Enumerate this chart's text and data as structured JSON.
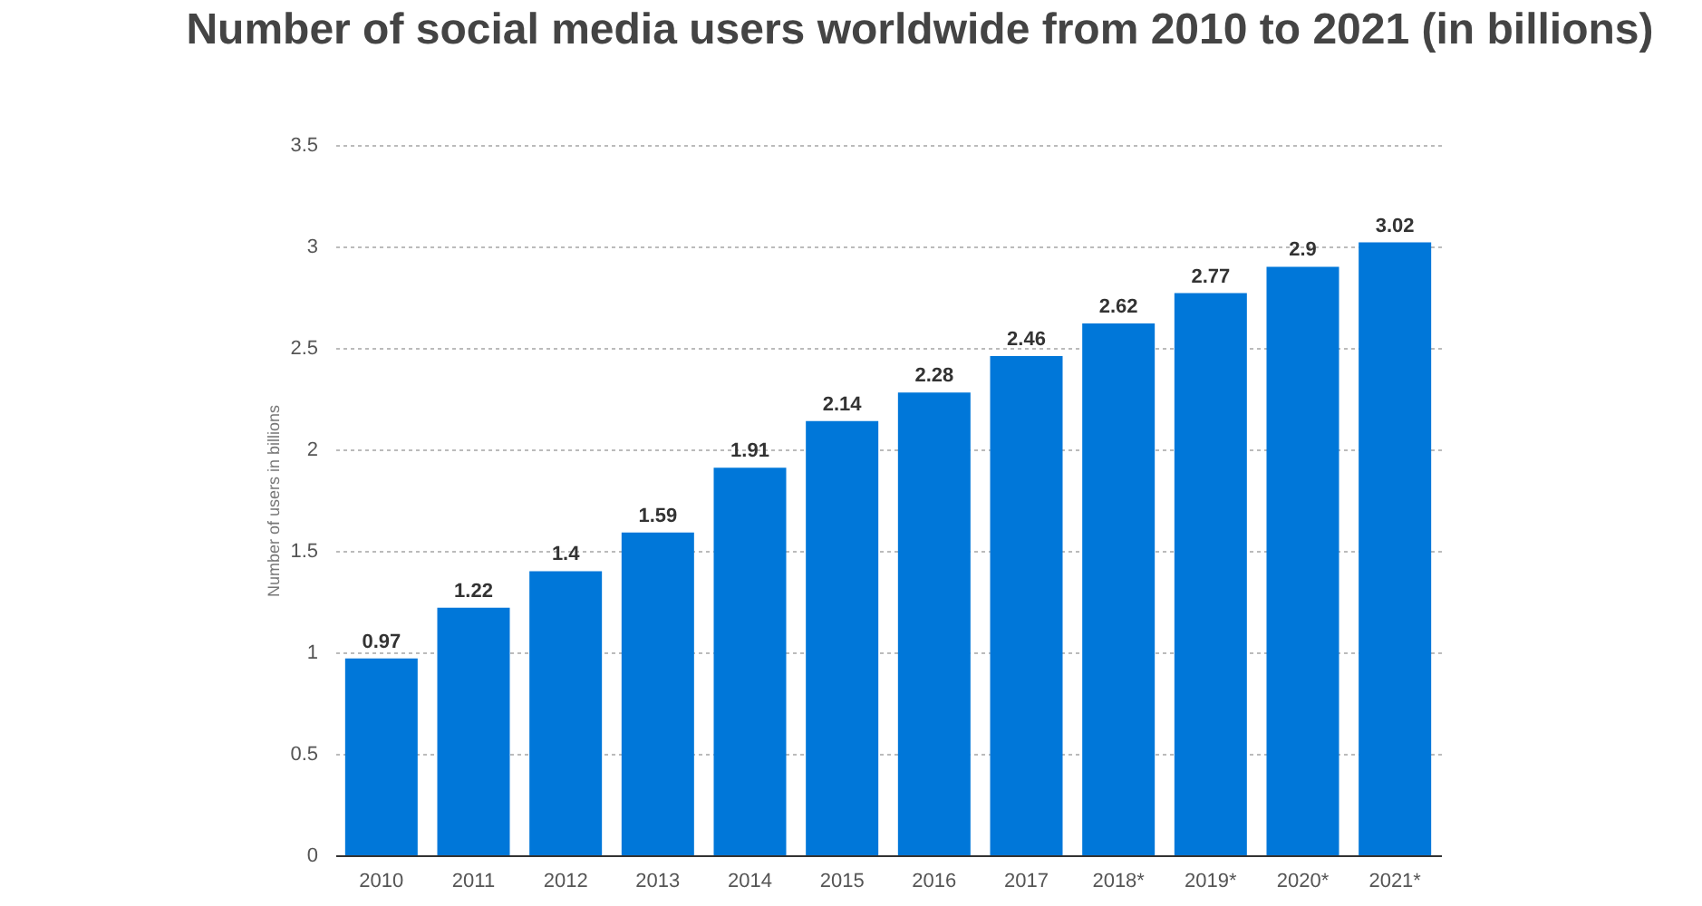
{
  "chart_data": {
    "type": "bar",
    "title": "Number of social media users worldwide from 2010 to 2021 (in billions)",
    "ylabel": "Number of users in billions",
    "categories": [
      "2010",
      "2011",
      "2012",
      "2013",
      "2014",
      "2015",
      "2016",
      "2017",
      "2018*",
      "2019*",
      "2020*",
      "2021*"
    ],
    "values": [
      0.97,
      1.22,
      1.4,
      1.59,
      1.91,
      2.14,
      2.28,
      2.46,
      2.62,
      2.77,
      2.9,
      3.02
    ],
    "color": "#0077d9",
    "ylim": [
      0,
      3.5
    ],
    "yticks": [
      0,
      0.5,
      1,
      1.5,
      2,
      2.5,
      3,
      3.5
    ],
    "grid": "y",
    "data_labels": true
  }
}
